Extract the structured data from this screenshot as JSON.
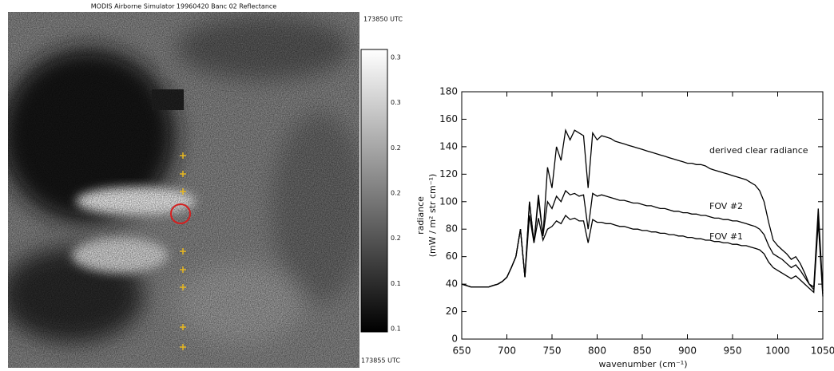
{
  "image_panel": {
    "title": "MODIS Airborne Simulator 19960420 Banc 02 Reflectance",
    "time_top": "173850 UTC",
    "time_bottom": "173855 UTC",
    "colorbar_labels": [
      "0.3",
      "0.3",
      "0.2",
      "0.2",
      "0.2",
      "0.1",
      "0.1"
    ]
  },
  "chart_data": {
    "type": "line",
    "xlabel": "wavenumber (cm⁻¹)",
    "ylabel": [
      "radiance",
      "(mW / m² str cm⁻¹)"
    ],
    "xlim": [
      650,
      1050
    ],
    "ylim": [
      0,
      180
    ],
    "xticks": [
      650,
      700,
      750,
      800,
      850,
      900,
      950,
      1000,
      1050
    ],
    "yticks": [
      0,
      20,
      40,
      60,
      80,
      100,
      120,
      140,
      160,
      180
    ],
    "x": [
      650,
      655,
      660,
      665,
      670,
      675,
      680,
      685,
      690,
      695,
      700,
      705,
      710,
      715,
      720,
      725,
      730,
      735,
      740,
      745,
      750,
      755,
      760,
      765,
      770,
      775,
      780,
      785,
      790,
      795,
      800,
      805,
      810,
      815,
      820,
      825,
      830,
      835,
      840,
      845,
      850,
      855,
      860,
      865,
      870,
      875,
      880,
      885,
      890,
      895,
      900,
      905,
      910,
      915,
      920,
      925,
      930,
      935,
      940,
      945,
      950,
      955,
      960,
      965,
      970,
      975,
      980,
      985,
      990,
      995,
      1000,
      1005,
      1010,
      1015,
      1020,
      1025,
      1030,
      1035,
      1040,
      1045,
      1050
    ],
    "series": [
      {
        "name": "derived clear radiance",
        "color": "#000000",
        "values": [
          40,
          39,
          38,
          38,
          38,
          38,
          38,
          39,
          40,
          42,
          45,
          52,
          60,
          80,
          45,
          100,
          70,
          105,
          75,
          125,
          110,
          140,
          130,
          152,
          145,
          152,
          150,
          148,
          110,
          150,
          145,
          148,
          147,
          146,
          144,
          143,
          142,
          141,
          140,
          139,
          138,
          137,
          136,
          135,
          134,
          133,
          132,
          131,
          130,
          129,
          128,
          128,
          127,
          127,
          126,
          124,
          123,
          122,
          121,
          120,
          119,
          118,
          117,
          116,
          114,
          112,
          108,
          100,
          85,
          72,
          68,
          65,
          62,
          58,
          60,
          55,
          48,
          40,
          38,
          95,
          35
        ]
      },
      {
        "name": "FOV #2",
        "color": "#000000",
        "values": [
          40,
          39,
          38,
          38,
          38,
          38,
          38,
          39,
          40,
          42,
          45,
          52,
          60,
          80,
          45,
          100,
          70,
          102,
          75,
          100,
          95,
          104,
          100,
          108,
          105,
          106,
          104,
          105,
          80,
          106,
          104,
          105,
          104,
          103,
          102,
          101,
          101,
          100,
          99,
          99,
          98,
          97,
          97,
          96,
          95,
          95,
          94,
          93,
          93,
          92,
          92,
          91,
          91,
          90,
          90,
          89,
          88,
          88,
          87,
          87,
          86,
          86,
          85,
          84,
          83,
          82,
          80,
          76,
          68,
          62,
          60,
          58,
          55,
          52,
          54,
          50,
          45,
          40,
          36,
          90,
          33
        ]
      },
      {
        "name": "FOV #1",
        "color": "#000000",
        "values": [
          40,
          39,
          38,
          38,
          38,
          38,
          38,
          39,
          40,
          42,
          45,
          52,
          60,
          80,
          45,
          90,
          70,
          88,
          72,
          80,
          82,
          86,
          84,
          90,
          87,
          88,
          86,
          86,
          70,
          87,
          85,
          85,
          84,
          84,
          83,
          82,
          82,
          81,
          80,
          80,
          79,
          79,
          78,
          78,
          77,
          77,
          76,
          76,
          75,
          75,
          74,
          74,
          73,
          73,
          72,
          72,
          71,
          71,
          70,
          70,
          69,
          69,
          68,
          68,
          67,
          66,
          65,
          62,
          56,
          52,
          50,
          48,
          46,
          44,
          46,
          43,
          40,
          37,
          34,
          85,
          31
        ]
      }
    ]
  }
}
